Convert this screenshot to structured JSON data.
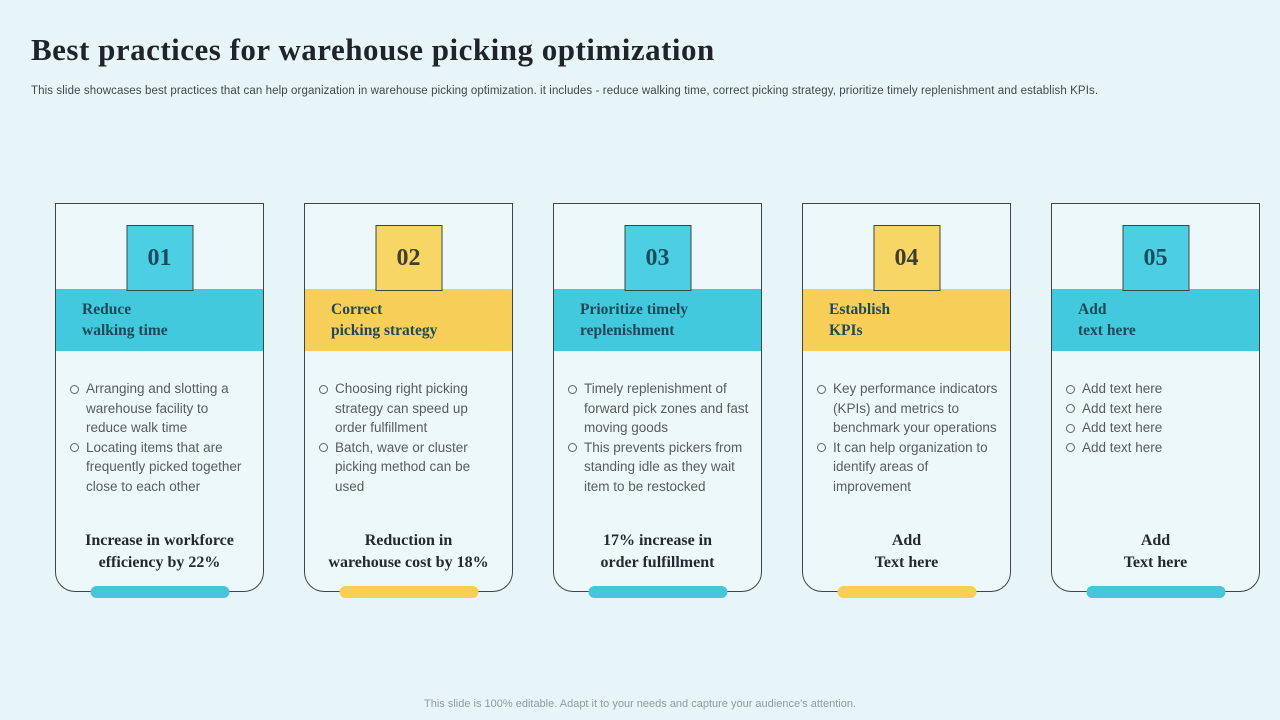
{
  "slide": {
    "title": "Best practices for warehouse picking optimization",
    "subtitle": "This slide showcases best practices that can help organization in warehouse picking optimization. it includes - reduce walking time, correct picking strategy, prioritize timely replenishment and establish KPIs.",
    "footer": "This slide is 100% editable. Adapt it to your needs and capture your audience's attention."
  },
  "colors": {
    "page_background": "#e7f5f8",
    "card_background": "#ecf8fa",
    "card_border": "#3f4446",
    "teal_accent": "#45c9de",
    "yellow_accent": "#f6ce58"
  },
  "cards": [
    {
      "number": "01",
      "accent": "teal",
      "title_lines": [
        "Reduce",
        "walking time"
      ],
      "bullets": [
        "Arranging and slotting a warehouse facility to reduce walk time",
        "Locating items that are frequently picked together close to each other"
      ],
      "highlight_lines": [
        "Increase in workforce",
        "efficiency by 22%"
      ]
    },
    {
      "number": "02",
      "accent": "yellow",
      "title_lines": [
        "Correct",
        "picking strategy"
      ],
      "bullets": [
        "Choosing right picking strategy can speed up order fulfillment",
        "Batch, wave or cluster picking method can be used"
      ],
      "highlight_lines": [
        "Reduction in",
        "warehouse cost by 18%"
      ]
    },
    {
      "number": "03",
      "accent": "teal",
      "title_lines": [
        "Prioritize timely",
        "replenishment"
      ],
      "bullets": [
        "Timely replenishment of forward pick zones and fast moving goods",
        "This prevents pickers from standing idle as they wait item to be restocked"
      ],
      "highlight_lines": [
        "17% increase in",
        "order fulfillment"
      ]
    },
    {
      "number": "04",
      "accent": "yellow",
      "title_lines": [
        "Establish",
        "KPIs"
      ],
      "bullets": [
        "Key performance indicators (KPIs) and metrics to benchmark your operations",
        "It can help organization to identify areas of improvement"
      ],
      "highlight_lines": [
        "Add",
        "Text here"
      ]
    },
    {
      "number": "05",
      "accent": "teal",
      "title_lines": [
        "Add",
        "text here"
      ],
      "bullets": [
        "Add text here",
        "Add text here",
        "Add text here",
        "Add text here"
      ],
      "highlight_lines": [
        "Add",
        "Text here"
      ]
    }
  ]
}
